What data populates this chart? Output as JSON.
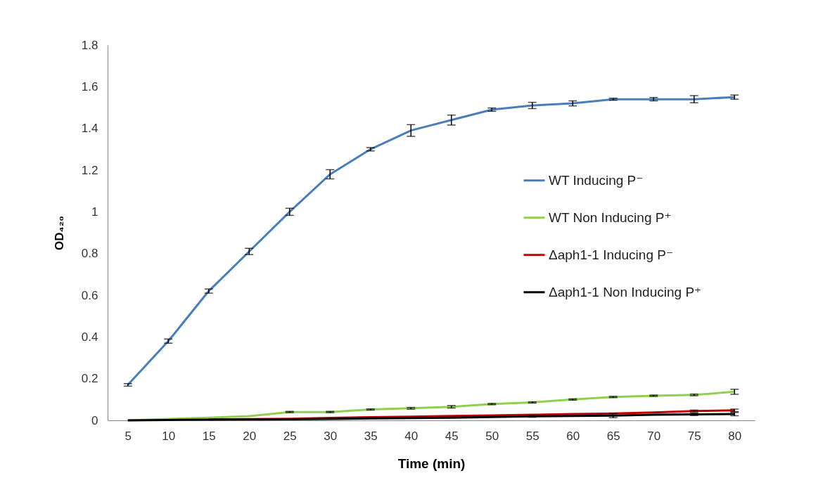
{
  "chart_data": {
    "type": "line",
    "xlabel": "Time (min)",
    "ylabel": "OD₄₂₀",
    "categories": [
      "5",
      "10",
      "15",
      "20",
      "25",
      "30",
      "35",
      "40",
      "45",
      "50",
      "55",
      "60",
      "65",
      "70",
      "75",
      "80"
    ],
    "ylim": [
      0,
      1.8
    ],
    "yticks": [
      0,
      0.2,
      0.4,
      0.6,
      0.8,
      1,
      1.2,
      1.4,
      1.6,
      1.8
    ],
    "grid": false,
    "legend": "right",
    "marker": "none",
    "line_style": "solid",
    "series": [
      {
        "name": "WT Inducing P⁻",
        "color": "#4a7ebb",
        "values": [
          0.17,
          0.38,
          0.62,
          0.81,
          1.0,
          1.18,
          1.3,
          1.39,
          1.44,
          1.49,
          1.51,
          1.52,
          1.54,
          1.54,
          1.54,
          1.55
        ],
        "errors": [
          0.006,
          0.01,
          0.01,
          0.015,
          0.017,
          0.022,
          0.008,
          0.028,
          0.024,
          0.008,
          0.015,
          0.012,
          0.005,
          0.008,
          0.017,
          0.01
        ]
      },
      {
        "name": "WT Non Inducing P⁺",
        "color": "#8fd14f",
        "values": [
          0,
          0.007,
          0.013,
          0.02,
          0.04,
          0.04,
          0.052,
          0.058,
          0.065,
          0.078,
          0.086,
          0.1,
          0.112,
          0.118,
          0.122,
          0.137
        ],
        "errors": [
          null,
          null,
          null,
          null,
          0.003,
          0.003,
          0.003,
          0.004,
          0.006,
          0.003,
          0.003,
          0.003,
          0.003,
          0.003,
          0.004,
          0.012
        ]
      },
      {
        "name": "Δaph1-1 Inducing P⁻",
        "color": "#c00000",
        "values": [
          null,
          null,
          0.004,
          0.006,
          0.008,
          0.012,
          0.015,
          0.018,
          0.021,
          0.024,
          0.027,
          0.03,
          0.033,
          0.038,
          0.045,
          0.048
        ],
        "errors": [
          null,
          null,
          null,
          null,
          null,
          null,
          null,
          null,
          null,
          null,
          null,
          null,
          null,
          null,
          0.004,
          0.006
        ]
      },
      {
        "name": "Δaph1-1 Non Inducing P⁺",
        "color": "#000000",
        "values": [
          0,
          0.002,
          0.003,
          0.004,
          0.005,
          0.007,
          0.009,
          0.011,
          0.013,
          0.016,
          0.019,
          0.021,
          0.023,
          0.027,
          0.029,
          0.03
        ],
        "errors": [
          null,
          null,
          null,
          null,
          null,
          null,
          null,
          null,
          null,
          null,
          0.004,
          null,
          0.01,
          null,
          0.006,
          0.008
        ]
      }
    ]
  }
}
